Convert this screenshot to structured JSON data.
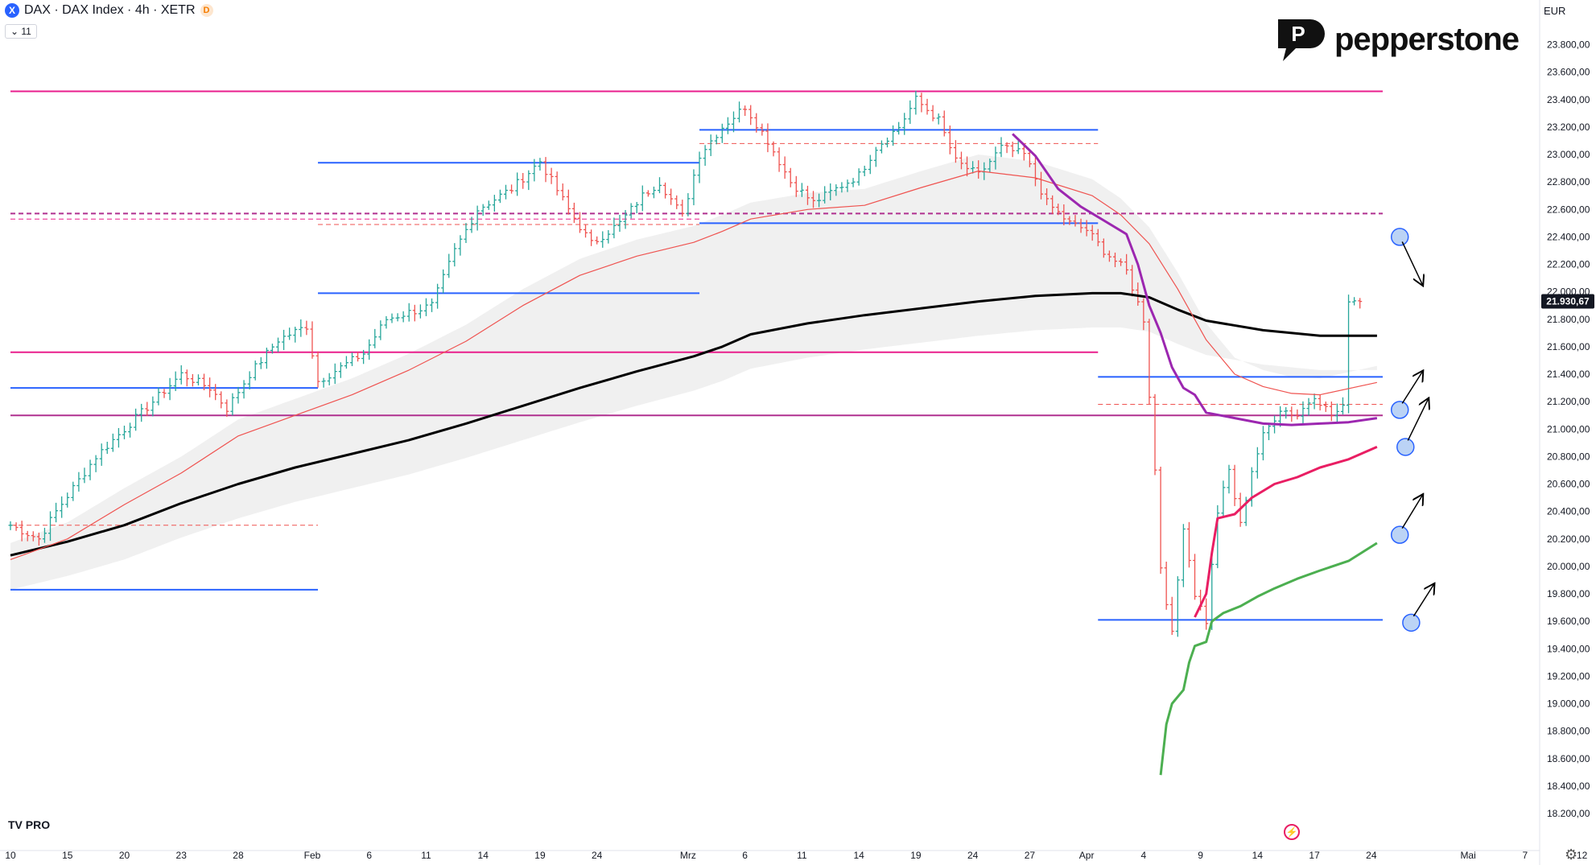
{
  "header": {
    "symbol_icon": "X",
    "title": "DAX · DAX Index · 4h · XETR",
    "badge": "D",
    "indicator_toggle": "⌄ 11"
  },
  "currency": "EUR",
  "logo": {
    "brand": "pepperstone",
    "mark_letter": "P"
  },
  "footer": {
    "tv_logo": "TV PRO",
    "bolt_icon": "⚡",
    "gear_icon": "⚙"
  },
  "chart_data": {
    "type": "line",
    "ylim": [
      18100,
      23950
    ],
    "y_ticks": [
      "23.800,00",
      "23.600,00",
      "23.400,00",
      "23.200,00",
      "23.000,00",
      "22.800,00",
      "22.600,00",
      "22.400,00",
      "22.200,00",
      "22.000,00",
      "21.800,00",
      "21.600,00",
      "21.400,00",
      "21.200,00",
      "21.000,00",
      "20.800,00",
      "20.600,00",
      "20.400,00",
      "20.200,00",
      "20.000,00",
      "19.800,00",
      "19.600,00",
      "19.400,00",
      "19.200,00",
      "19.000,00",
      "18.800,00",
      "18.600,00",
      "18.400,00",
      "18.200,00"
    ],
    "x_ticks": [
      {
        "label": "10",
        "i": 0
      },
      {
        "label": "15",
        "i": 10
      },
      {
        "label": "20",
        "i": 20
      },
      {
        "label": "23",
        "i": 30
      },
      {
        "label": "28",
        "i": 40
      },
      {
        "label": "Feb",
        "i": 53
      },
      {
        "label": "6",
        "i": 63
      },
      {
        "label": "11",
        "i": 73
      },
      {
        "label": "14",
        "i": 83
      },
      {
        "label": "19",
        "i": 93
      },
      {
        "label": "24",
        "i": 103
      },
      {
        "label": "Mrz",
        "i": 119
      },
      {
        "label": "6",
        "i": 129
      },
      {
        "label": "11",
        "i": 139
      },
      {
        "label": "14",
        "i": 149
      },
      {
        "label": "19",
        "i": 159
      },
      {
        "label": "24",
        "i": 169
      },
      {
        "label": "27",
        "i": 179
      },
      {
        "label": "Apr",
        "i": 189
      },
      {
        "label": "4",
        "i": 199
      },
      {
        "label": "9",
        "i": 209
      },
      {
        "label": "14",
        "i": 219
      },
      {
        "label": "17",
        "i": 229
      },
      {
        "label": "24",
        "i": 239
      },
      {
        "label": "Mai",
        "i": 256
      },
      {
        "label": "7",
        "i": 266
      },
      {
        "label": "12",
        "i": 276
      }
    ],
    "n_slots": 285,
    "last_price": "21.930,67",
    "last_price_value": 21930.67,
    "colors": {
      "up": "#26a69a",
      "down": "#ef5350",
      "sma_long": "#000000",
      "ema": "#ef5350",
      "purple": "#9c27b0",
      "crimson": "#e91e63",
      "green": "#4caf50",
      "blue": "#2962ff",
      "magenta": "#e91e8c",
      "band": "#f0f0f0"
    },
    "anchors": [
      [
        0,
        20300
      ],
      [
        5,
        20200
      ],
      [
        8,
        20400
      ],
      [
        15,
        20800
      ],
      [
        20,
        21000
      ],
      [
        25,
        21200
      ],
      [
        30,
        21400
      ],
      [
        35,
        21300
      ],
      [
        38,
        21150
      ],
      [
        42,
        21400
      ],
      [
        47,
        21650
      ],
      [
        52,
        21750
      ],
      [
        54,
        21350
      ],
      [
        58,
        21450
      ],
      [
        62,
        21550
      ],
      [
        66,
        21800
      ],
      [
        70,
        21850
      ],
      [
        74,
        21900
      ],
      [
        78,
        22300
      ],
      [
        82,
        22600
      ],
      [
        88,
        22750
      ],
      [
        93,
        22950
      ],
      [
        98,
        22600
      ],
      [
        102,
        22350
      ],
      [
        107,
        22500
      ],
      [
        111,
        22700
      ],
      [
        114,
        22800
      ],
      [
        118,
        22550
      ],
      [
        121,
        23000
      ],
      [
        125,
        23200
      ],
      [
        129,
        23350
      ],
      [
        133,
        23100
      ],
      [
        137,
        22800
      ],
      [
        141,
        22650
      ],
      [
        145,
        22750
      ],
      [
        149,
        22850
      ],
      [
        152,
        23050
      ],
      [
        156,
        23200
      ],
      [
        159,
        23400
      ],
      [
        163,
        23250
      ],
      [
        166,
        22950
      ],
      [
        170,
        22850
      ],
      [
        174,
        23050
      ],
      [
        178,
        23000
      ],
      [
        182,
        22650
      ],
      [
        186,
        22500
      ],
      [
        189,
        22450
      ],
      [
        192,
        22300
      ],
      [
        196,
        22150
      ],
      [
        199,
        21800
      ],
      [
        201,
        20700
      ],
      [
        202,
        20000
      ],
      [
        204,
        19500
      ],
      [
        206,
        20300
      ],
      [
        208,
        19800
      ],
      [
        210,
        19600
      ],
      [
        212,
        20400
      ],
      [
        214,
        20700
      ],
      [
        216,
        20300
      ],
      [
        218,
        20700
      ],
      [
        220,
        20950
      ],
      [
        223,
        21150
      ],
      [
        226,
        21100
      ],
      [
        229,
        21250
      ],
      [
        232,
        21100
      ],
      [
        234,
        21150
      ],
      [
        235,
        21950
      ],
      [
        237,
        21930
      ]
    ],
    "series": [
      {
        "key": "sma_long",
        "width": 3,
        "points": [
          [
            0,
            20080
          ],
          [
            10,
            20180
          ],
          [
            20,
            20300
          ],
          [
            30,
            20460
          ],
          [
            40,
            20600
          ],
          [
            50,
            20720
          ],
          [
            60,
            20820
          ],
          [
            70,
            20920
          ],
          [
            80,
            21040
          ],
          [
            90,
            21170
          ],
          [
            100,
            21300
          ],
          [
            110,
            21420
          ],
          [
            120,
            21530
          ],
          [
            125,
            21600
          ],
          [
            130,
            21690
          ],
          [
            140,
            21770
          ],
          [
            150,
            21830
          ],
          [
            160,
            21880
          ],
          [
            170,
            21930
          ],
          [
            180,
            21970
          ],
          [
            190,
            21990
          ],
          [
            195,
            21990
          ],
          [
            200,
            21960
          ],
          [
            205,
            21870
          ],
          [
            210,
            21790
          ],
          [
            220,
            21720
          ],
          [
            230,
            21680
          ],
          [
            240,
            21680
          ]
        ]
      },
      {
        "key": "ema",
        "width": 1.2,
        "points": [
          [
            0,
            20050
          ],
          [
            10,
            20200
          ],
          [
            20,
            20450
          ],
          [
            30,
            20680
          ],
          [
            40,
            20950
          ],
          [
            50,
            21100
          ],
          [
            60,
            21250
          ],
          [
            70,
            21430
          ],
          [
            80,
            21640
          ],
          [
            90,
            21900
          ],
          [
            100,
            22120
          ],
          [
            110,
            22260
          ],
          [
            120,
            22360
          ],
          [
            125,
            22440
          ],
          [
            130,
            22530
          ],
          [
            140,
            22600
          ],
          [
            150,
            22630
          ],
          [
            160,
            22760
          ],
          [
            170,
            22880
          ],
          [
            180,
            22830
          ],
          [
            190,
            22700
          ],
          [
            195,
            22560
          ],
          [
            200,
            22350
          ],
          [
            205,
            22020
          ],
          [
            210,
            21650
          ],
          [
            215,
            21400
          ],
          [
            220,
            21310
          ],
          [
            225,
            21260
          ],
          [
            230,
            21250
          ],
          [
            240,
            21340
          ]
        ]
      },
      {
        "key": "purple",
        "width": 3,
        "points": [
          [
            176,
            23150
          ],
          [
            180,
            22990
          ],
          [
            184,
            22750
          ],
          [
            188,
            22620
          ],
          [
            192,
            22520
          ],
          [
            196,
            22420
          ],
          [
            198,
            22200
          ],
          [
            200,
            21900
          ],
          [
            202,
            21700
          ],
          [
            204,
            21450
          ],
          [
            206,
            21300
          ],
          [
            208,
            21250
          ],
          [
            210,
            21120
          ],
          [
            215,
            21080
          ],
          [
            220,
            21040
          ],
          [
            225,
            21030
          ],
          [
            230,
            21040
          ],
          [
            235,
            21050
          ],
          [
            240,
            21080
          ]
        ]
      },
      {
        "key": "crimson",
        "width": 3,
        "points": [
          [
            208,
            19630
          ],
          [
            210,
            19800
          ],
          [
            211,
            20100
          ],
          [
            212,
            20350
          ],
          [
            215,
            20380
          ],
          [
            218,
            20500
          ],
          [
            222,
            20600
          ],
          [
            226,
            20650
          ],
          [
            230,
            20720
          ],
          [
            235,
            20780
          ],
          [
            240,
            20870
          ]
        ]
      },
      {
        "key": "green",
        "width": 3,
        "points": [
          [
            202,
            18480
          ],
          [
            203,
            18850
          ],
          [
            204,
            19000
          ],
          [
            206,
            19100
          ],
          [
            207,
            19300
          ],
          [
            208,
            19420
          ],
          [
            210,
            19450
          ],
          [
            211,
            19600
          ],
          [
            213,
            19660
          ],
          [
            216,
            19710
          ],
          [
            219,
            19780
          ],
          [
            222,
            19840
          ],
          [
            226,
            19910
          ],
          [
            230,
            19970
          ],
          [
            235,
            20040
          ],
          [
            240,
            20170
          ]
        ]
      }
    ],
    "levels": [
      {
        "value": 23460,
        "i0": 0,
        "i1": 241,
        "color": "#e91e8c",
        "style": "solid",
        "width": 2
      },
      {
        "value": 23180,
        "i0": 121,
        "i1": 191,
        "color": "#2962ff",
        "style": "solid",
        "width": 2
      },
      {
        "value": 23080,
        "i0": 121,
        "i1": 191,
        "color": "#ef5350",
        "style": "dashed",
        "width": 1
      },
      {
        "value": 22940,
        "i0": 54,
        "i1": 121,
        "color": "#2962ff",
        "style": "solid",
        "width": 2
      },
      {
        "value": 22570,
        "i0": 0,
        "i1": 241,
        "color": "#b0308f",
        "style": "dashed",
        "width": 2
      },
      {
        "value": 22530,
        "i0": 0,
        "i1": 121,
        "color": "#e91e8c",
        "style": "dashed",
        "width": 1
      },
      {
        "value": 22500,
        "i0": 121,
        "i1": 191,
        "color": "#2962ff",
        "style": "solid",
        "width": 2
      },
      {
        "value": 22490,
        "i0": 54,
        "i1": 121,
        "color": "#ef5350",
        "style": "dashed",
        "width": 1
      },
      {
        "value": 21990,
        "i0": 54,
        "i1": 121,
        "color": "#2962ff",
        "style": "solid",
        "width": 2
      },
      {
        "value": 21560,
        "i0": 0,
        "i1": 191,
        "color": "#e91e8c",
        "style": "solid",
        "width": 2
      },
      {
        "value": 21380,
        "i0": 191,
        "i1": 241,
        "color": "#2962ff",
        "style": "solid",
        "width": 2
      },
      {
        "value": 21300,
        "i0": 0,
        "i1": 54,
        "color": "#2962ff",
        "style": "solid",
        "width": 2
      },
      {
        "value": 21180,
        "i0": 191,
        "i1": 241,
        "color": "#ef5350",
        "style": "dashed",
        "width": 1
      },
      {
        "value": 21100,
        "i0": 0,
        "i1": 241,
        "color": "#b0308f",
        "style": "solid",
        "width": 2
      },
      {
        "value": 20300,
        "i0": 0,
        "i1": 54,
        "color": "#ef5350",
        "style": "dashed",
        "width": 1
      },
      {
        "value": 19830,
        "i0": 0,
        "i1": 54,
        "color": "#2962ff",
        "style": "solid",
        "width": 2
      },
      {
        "value": 19610,
        "i0": 191,
        "i1": 241,
        "color": "#2962ff",
        "style": "solid",
        "width": 2
      }
    ],
    "annotations": [
      {
        "i": 244,
        "value": 22400,
        "dir": "down",
        "to_i": 248,
        "to_value": 22050
      },
      {
        "i": 244,
        "value": 21140,
        "dir": "up",
        "to_i": 248,
        "to_value": 21420
      },
      {
        "i": 245,
        "value": 20870,
        "dir": "up",
        "to_i": 249,
        "to_value": 21220
      },
      {
        "i": 244,
        "value": 20230,
        "dir": "up",
        "to_i": 248,
        "to_value": 20520
      },
      {
        "i": 246,
        "value": 19590,
        "dir": "up",
        "to_i": 250,
        "to_value": 19870
      }
    ]
  }
}
